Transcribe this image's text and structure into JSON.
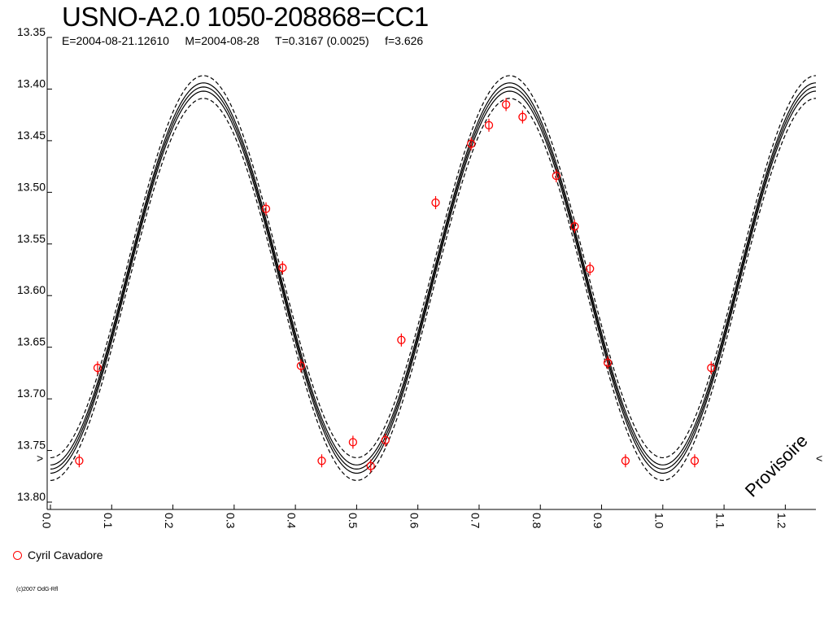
{
  "chart_data": {
    "type": "scatter",
    "title": "USNO-A2.0 1050-208868=CC1",
    "subtitle": "E=2004-08-21.12610     M=2004-08-28     T=0.3167 (0.0025)     f=3.626",
    "watermark": "Provisoire",
    "copyright": "(c)2007 OdG-Rfl",
    "xlim": [
      0.0,
      1.25
    ],
    "ylim": [
      13.35,
      13.8
    ],
    "y_inverted": true,
    "x_ticks": [
      "0.0",
      "0.1",
      "0.2",
      "0.3",
      "0.4",
      "0.5",
      "0.6",
      "0.7",
      "0.8",
      "0.9",
      "1.0",
      "1.1",
      "1.2"
    ],
    "y_ticks": [
      "13.35",
      "13.40",
      "13.45",
      "13.50",
      "13.55",
      "13.60",
      "13.65",
      "13.70",
      "13.75",
      "13.80"
    ],
    "model": {
      "mean": 13.583,
      "amplitude": 0.185,
      "phase_of_max": 0.25,
      "cycles_per_phase": 2,
      "envelope_offsets": [
        -0.011,
        -0.004,
        0.0,
        0.004,
        0.011
      ],
      "dashed": [
        true,
        false,
        false,
        false,
        true
      ]
    },
    "series": [
      {
        "name": "Cyril Cavadore",
        "color": "#ff0000",
        "marker": "circle",
        "x": [
          0.047,
          0.077,
          0.352,
          0.379,
          0.409,
          0.443,
          0.494,
          0.523,
          0.547,
          0.573,
          0.629,
          0.687,
          0.716,
          0.744,
          0.771,
          0.826,
          0.856,
          0.881,
          0.91,
          0.939,
          1.052,
          1.079
        ],
        "y": [
          13.76,
          13.67,
          13.516,
          13.573,
          13.668,
          13.76,
          13.742,
          13.765,
          13.74,
          13.643,
          13.51,
          13.453,
          13.435,
          13.415,
          13.427,
          13.484,
          13.533,
          13.574,
          13.665,
          13.76,
          13.76,
          13.67
        ]
      }
    ]
  }
}
